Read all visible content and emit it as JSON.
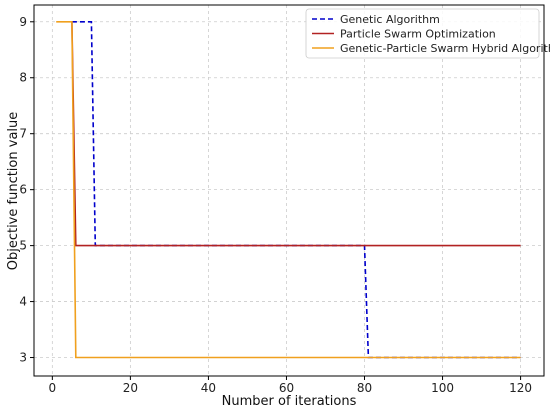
{
  "chart_data": {
    "type": "line",
    "title": "",
    "xlabel": "Number of iterations",
    "ylabel": "Objective function value",
    "xlim": [
      -4.7,
      126
    ],
    "ylim": [
      2.67,
      9.3
    ],
    "xticks": [
      0,
      20,
      40,
      60,
      80,
      100,
      120
    ],
    "yticks": [
      3,
      4,
      5,
      6,
      7,
      8,
      9
    ],
    "grid": true,
    "legend_position": "top-right",
    "series": [
      {
        "name": "Genetic Algorithm",
        "color": "#0000cc",
        "style": "dashed",
        "x": [
          5,
          10,
          11,
          80,
          81,
          120
        ],
        "y": [
          9,
          9,
          5,
          5,
          3,
          3
        ]
      },
      {
        "name": "Particle Swarm Optimization",
        "color": "#b22222",
        "style": "solid",
        "x": [
          5,
          6,
          120
        ],
        "y": [
          9,
          5,
          5
        ]
      },
      {
        "name": "Genetic-Particle Swarm Hybrid Algorithm",
        "color": "#f0a01e",
        "style": "solid",
        "x": [
          1,
          5,
          6,
          120
        ],
        "y": [
          9,
          9,
          3,
          3
        ]
      }
    ]
  }
}
